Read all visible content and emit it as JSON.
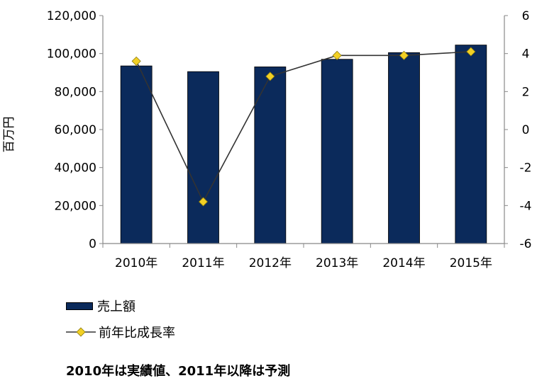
{
  "chart_data": {
    "type": "bar",
    "categories": [
      "2010年",
      "2011年",
      "2012年",
      "2013年",
      "2014年",
      "2015年"
    ],
    "series": [
      {
        "name": "売上額",
        "type": "bar",
        "axis": "left",
        "values": [
          93500,
          90500,
          93000,
          97000,
          100500,
          104500
        ]
      },
      {
        "name": "前年比成長率",
        "type": "line",
        "axis": "right",
        "values": [
          3.6,
          -3.8,
          2.8,
          3.9,
          3.9,
          4.1
        ]
      }
    ],
    "ylabel": "百万円",
    "ylim": [
      0,
      120000
    ],
    "y2lim": [
      -6,
      6
    ],
    "yticks": [
      "0",
      "20,000",
      "40,000",
      "60,000",
      "80,000",
      "100,000",
      "120,000"
    ],
    "y2ticks": [
      "-6",
      "-4",
      "-2",
      "0",
      "2",
      "4",
      "6"
    ],
    "legend_position": "bottom-left",
    "grid": false,
    "colors": {
      "bar": "#0b2a5b",
      "line": "#333333",
      "marker": "#f2d024"
    }
  },
  "footnote": "2010年は実績値、2011年以降は予測"
}
